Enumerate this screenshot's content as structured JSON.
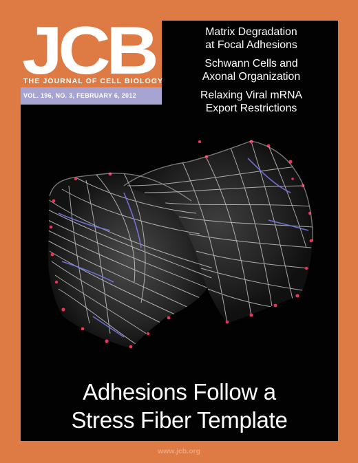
{
  "masthead": {
    "logo": "JCB",
    "journal_name": "THE JOURNAL OF CELL BIOLOGY",
    "issue": "VOL. 196, NO. 3, FEBRUARY 6, 2012"
  },
  "headlines": [
    {
      "line1": "Matrix Degradation",
      "line2": "at Focal Adhesions"
    },
    {
      "line1": "Schwann Cells and",
      "line2": "Axonal Organization"
    },
    {
      "line1": "Relaxing Viral mRNA",
      "line2": "Export Restrictions"
    }
  ],
  "cover_story": {
    "line1": "Adhesions Follow a",
    "line2": "Stress Fiber Template"
  },
  "footer": {
    "url": "www.jcb.org"
  },
  "colors": {
    "border": "#de7b45",
    "issue_bar": "#a8a4d2",
    "panel": "#020202",
    "fiber": "#dcdcdc",
    "adhesion": "#e8325a",
    "fiber_blue": "#7d7cf0"
  }
}
